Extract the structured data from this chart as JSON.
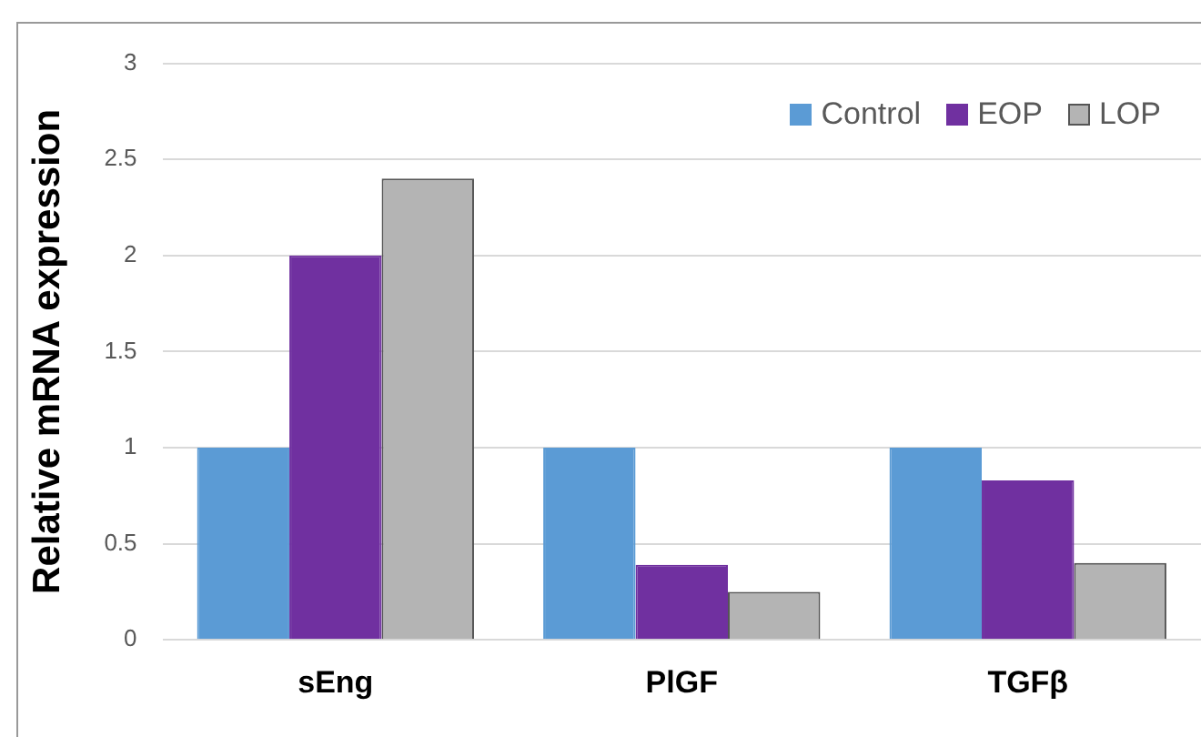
{
  "chart_data": {
    "type": "bar",
    "ylabel": "Relative mRNA expression",
    "categories": [
      "sEng",
      "PlGF",
      "TGFβ"
    ],
    "series": [
      {
        "name": "Control",
        "color": "#5b9bd5",
        "values": [
          1,
          1,
          1
        ]
      },
      {
        "name": "EOP",
        "color": "#7030a0",
        "values": [
          2,
          0.39,
          0.83
        ]
      },
      {
        "name": "LOP",
        "color": "#b4b4b4",
        "values": [
          2.4,
          0.25,
          0.4
        ]
      }
    ],
    "ylim": [
      0,
      3
    ],
    "yticks": [
      0,
      0.5,
      1,
      1.5,
      2,
      2.5,
      3
    ],
    "grid": "y",
    "legend": "top right"
  }
}
